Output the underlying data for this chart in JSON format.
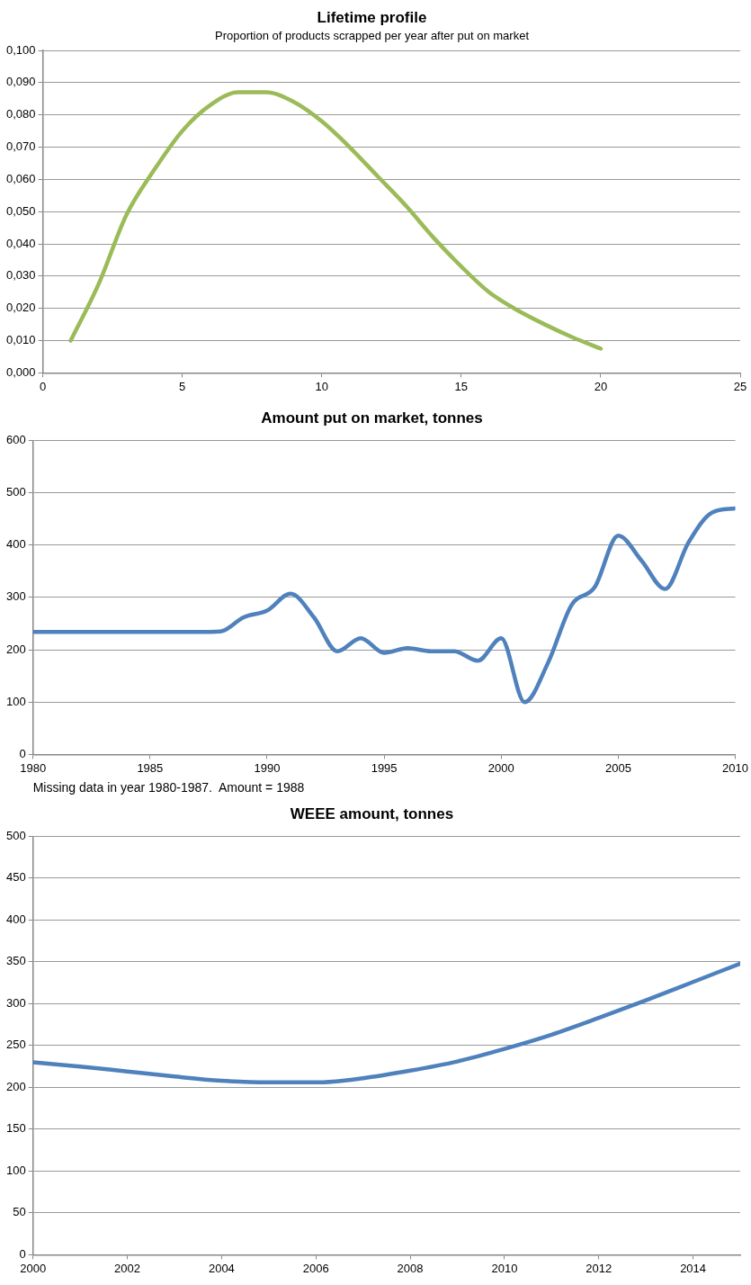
{
  "chart_data": [
    {
      "type": "line",
      "title": "Lifetime profile",
      "subtitle": "Proportion of products scrapped per year after put on market",
      "x": [
        1,
        2,
        3,
        4,
        5,
        6,
        7,
        8,
        9,
        10,
        11,
        12,
        13,
        14,
        15,
        16,
        17,
        18,
        19,
        20
      ],
      "series": [
        {
          "color": "#9bbb59",
          "values": [
            0.01,
            0.0275,
            0.049,
            0.063,
            0.075,
            0.083,
            0.087,
            0.087,
            0.084,
            0.078,
            0.07,
            0.061,
            0.052,
            0.042,
            0.033,
            0.025,
            0.0195,
            0.015,
            0.011,
            0.0075
          ]
        }
      ],
      "xlim": [
        0,
        25
      ],
      "xticks": [
        0,
        5,
        10,
        15,
        20,
        25
      ],
      "ylim": [
        0,
        0.1
      ],
      "yticks": [
        {
          "value": 0,
          "label": "0,000"
        },
        {
          "value": 0.01,
          "label": "0,010"
        },
        {
          "value": 0.02,
          "label": "0,020"
        },
        {
          "value": 0.03,
          "label": "0,030"
        },
        {
          "value": 0.04,
          "label": "0,040"
        },
        {
          "value": 0.05,
          "label": "0,050"
        },
        {
          "value": 0.06,
          "label": "0,060"
        },
        {
          "value": 0.07,
          "label": "0,070"
        },
        {
          "value": 0.08,
          "label": "0,080"
        },
        {
          "value": 0.09,
          "label": "0,090"
        },
        {
          "value": 0.1,
          "label": "0,100"
        }
      ],
      "grid": "y",
      "legend": false,
      "marker": "none",
      "line_style": "solid"
    },
    {
      "type": "line",
      "title": "Amount put on market, tonnes",
      "annotations": [
        "Missing data in year 1980-1987.  Amount = 1988"
      ],
      "x": [
        1980,
        1981,
        1982,
        1983,
        1984,
        1985,
        1986,
        1987,
        1988,
        1989,
        1990,
        1991,
        1992,
        1993,
        1994,
        1995,
        1996,
        1997,
        1998,
        1999,
        2000,
        2001,
        2002,
        2003,
        2004,
        2005,
        2006,
        2007,
        2008,
        2009,
        2010
      ],
      "series": [
        {
          "color": "#4f81bd",
          "values": [
            234,
            234,
            234,
            234,
            234,
            234,
            234,
            234,
            235,
            262,
            275,
            307,
            262,
            197,
            222,
            194,
            203,
            197,
            197,
            179,
            222,
            100,
            175,
            285,
            320,
            418,
            370,
            316,
            405,
            462,
            470
          ]
        }
      ],
      "xlim": [
        1980,
        2010
      ],
      "xticks": [
        1980,
        1985,
        1990,
        1995,
        2000,
        2005,
        2010
      ],
      "ylim": [
        0,
        600
      ],
      "yticks": [
        0,
        100,
        200,
        300,
        400,
        500,
        600
      ],
      "grid": "y",
      "legend": false,
      "marker": "none",
      "line_style": "solid"
    },
    {
      "type": "line",
      "title": "WEEE amount, tonnes",
      "x": [
        2000,
        2001,
        2002,
        2003,
        2004,
        2005,
        2006,
        2007,
        2008,
        2009,
        2010,
        2011,
        2012,
        2013,
        2014,
        2015
      ],
      "series": [
        {
          "color": "#4f81bd",
          "values": [
            230,
            225,
            219,
            213,
            208,
            206,
            206,
            211,
            220,
            231,
            246,
            263,
            283,
            304,
            326,
            348
          ]
        }
      ],
      "xlim": [
        2000,
        2015
      ],
      "xticks": [
        2000,
        2002,
        2004,
        2006,
        2008,
        2010,
        2012,
        2014
      ],
      "ylim": [
        0,
        500
      ],
      "yticks": [
        0,
        50,
        100,
        150,
        200,
        250,
        300,
        350,
        400,
        450,
        500
      ],
      "grid": "y",
      "legend": false,
      "marker": "none",
      "line_style": "solid"
    }
  ]
}
